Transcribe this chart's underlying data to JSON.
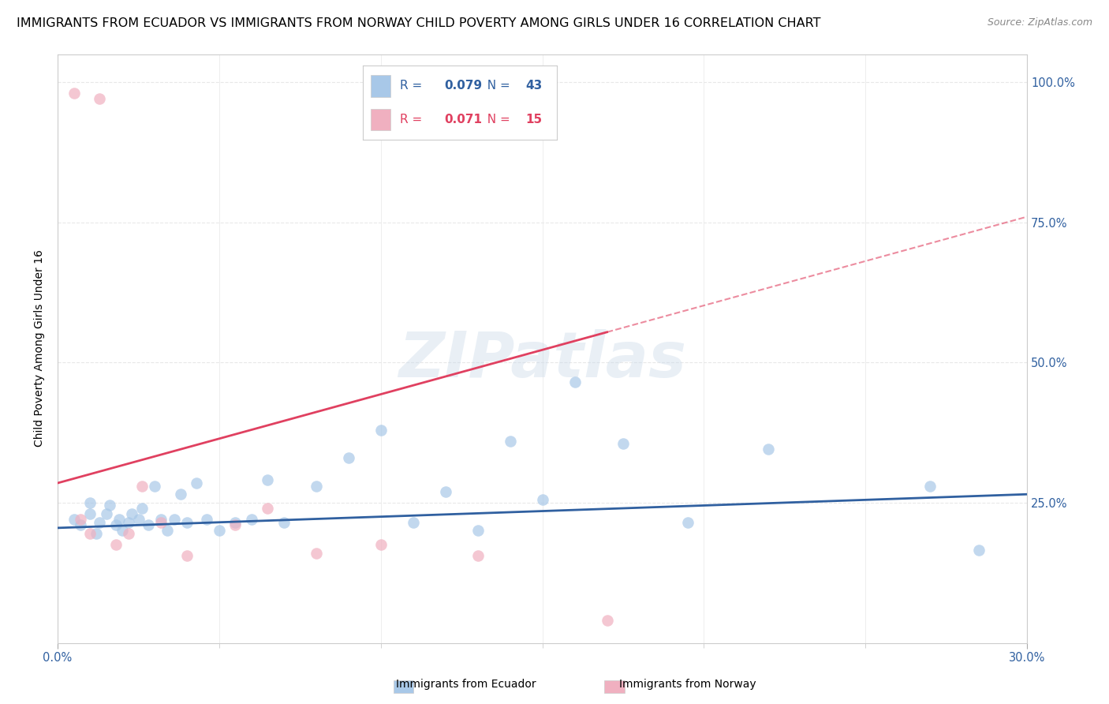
{
  "title": "IMMIGRANTS FROM ECUADOR VS IMMIGRANTS FROM NORWAY CHILD POVERTY AMONG GIRLS UNDER 16 CORRELATION CHART",
  "source": "Source: ZipAtlas.com",
  "ylabel": "Child Poverty Among Girls Under 16",
  "xlim": [
    0.0,
    0.3
  ],
  "ylim": [
    0.0,
    1.05
  ],
  "xticks": [
    0.0,
    0.3
  ],
  "xtick_labels": [
    "0.0%",
    "30.0%"
  ],
  "yticks": [
    0.25,
    0.5,
    0.75,
    1.0
  ],
  "ytick_labels": [
    "25.0%",
    "50.0%",
    "75.0%",
    "100.0%"
  ],
  "ecuador_x": [
    0.005,
    0.007,
    0.01,
    0.01,
    0.012,
    0.013,
    0.015,
    0.016,
    0.018,
    0.019,
    0.02,
    0.022,
    0.023,
    0.025,
    0.026,
    0.028,
    0.03,
    0.032,
    0.034,
    0.036,
    0.038,
    0.04,
    0.043,
    0.046,
    0.05,
    0.055,
    0.06,
    0.065,
    0.07,
    0.08,
    0.09,
    0.1,
    0.11,
    0.12,
    0.13,
    0.14,
    0.15,
    0.16,
    0.175,
    0.195,
    0.22,
    0.27,
    0.285
  ],
  "ecuador_y": [
    0.22,
    0.21,
    0.23,
    0.25,
    0.195,
    0.215,
    0.23,
    0.245,
    0.21,
    0.22,
    0.2,
    0.215,
    0.23,
    0.22,
    0.24,
    0.21,
    0.28,
    0.22,
    0.2,
    0.22,
    0.265,
    0.215,
    0.285,
    0.22,
    0.2,
    0.215,
    0.22,
    0.29,
    0.215,
    0.28,
    0.33,
    0.38,
    0.215,
    0.27,
    0.2,
    0.36,
    0.255,
    0.465,
    0.355,
    0.215,
    0.345,
    0.28,
    0.165
  ],
  "norway_x": [
    0.005,
    0.007,
    0.01,
    0.013,
    0.018,
    0.022,
    0.026,
    0.032,
    0.04,
    0.055,
    0.065,
    0.08,
    0.1,
    0.13,
    0.17
  ],
  "norway_y": [
    0.98,
    0.22,
    0.195,
    0.97,
    0.175,
    0.195,
    0.28,
    0.215,
    0.155,
    0.21,
    0.24,
    0.16,
    0.175,
    0.155,
    0.04
  ],
  "ecuador_color": "#a8c8e8",
  "norway_color": "#f0b0c0",
  "ecuador_line_color": "#3060a0",
  "norway_line_color": "#e04060",
  "R_ecuador": 0.079,
  "N_ecuador": 43,
  "R_norway": 0.071,
  "N_norway": 15,
  "background_color": "#ffffff",
  "grid_color": "#e8e8e8",
  "watermark": "ZIPatlas",
  "title_fontsize": 11.5,
  "axis_label_fontsize": 10,
  "tick_fontsize": 10.5,
  "marker_size": 110,
  "norway_line_start_x": 0.0,
  "norway_line_end_solid_x": 0.17,
  "norway_line_end_dash_x": 0.3,
  "ecuador_line_start_x": 0.0,
  "ecuador_line_end_x": 0.3
}
